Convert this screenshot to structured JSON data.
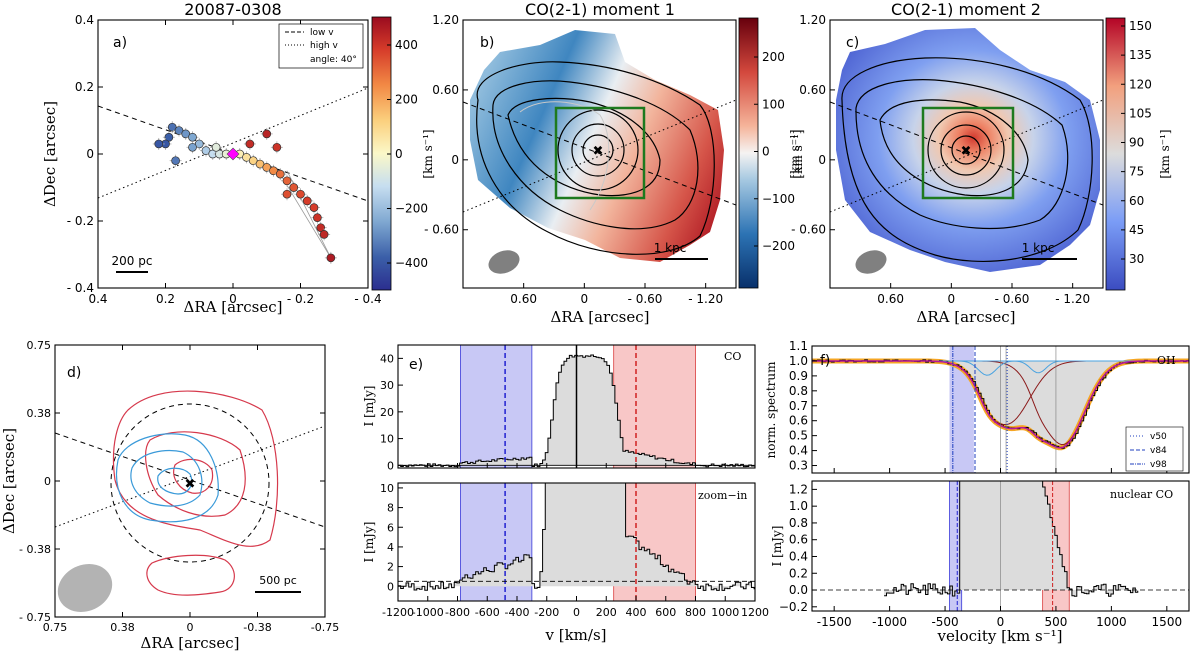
{
  "chart_data": [
    {
      "type": "scatter",
      "panel": "a)",
      "title": "20087-0308",
      "xlabel": "ΔRA [arcsec]",
      "ylabel": "ΔDec [arcsec]",
      "xlim": [
        0.4,
        -0.4
      ],
      "ylim": [
        -0.4,
        0.4
      ],
      "xticks": [
        "0.4",
        "0.2",
        "0",
        "- 0.2",
        "- 0.4"
      ],
      "yticks": [
        "0.4",
        "0.2",
        "0",
        "- 0.2",
        "- 0.4"
      ],
      "colorbar": {
        "ticks": [
          "400",
          "200",
          "0",
          "−200",
          "−400"
        ],
        "range": [
          -480,
          480
        ]
      },
      "legend": [
        "low v",
        "high v",
        "angle: 40°"
      ],
      "scalebar": "200 pc",
      "points": [
        [
          0.18,
          0.08,
          -330
        ],
        [
          0.16,
          0.07,
          -300
        ],
        [
          0.14,
          0.06,
          -270
        ],
        [
          0.12,
          0.05,
          -240
        ],
        [
          0.1,
          0.03,
          -200
        ],
        [
          0.08,
          0.01,
          -160
        ],
        [
          0.06,
          0.0,
          -120
        ],
        [
          0.04,
          0.0,
          -80
        ],
        [
          0.02,
          0.0,
          -40
        ],
        [
          0.19,
          0.05,
          -360
        ],
        [
          0.2,
          0.03,
          -380
        ],
        [
          0.12,
          0.02,
          -250
        ],
        [
          0.17,
          -0.02,
          -320
        ],
        [
          0.22,
          0.03,
          -380
        ],
        [
          0.05,
          0.02,
          -60
        ],
        [
          -0.02,
          0.0,
          30
        ],
        [
          -0.04,
          -0.01,
          70
        ],
        [
          -0.06,
          -0.02,
          110
        ],
        [
          -0.08,
          -0.03,
          150
        ],
        [
          -0.1,
          -0.04,
          200
        ],
        [
          -0.12,
          -0.05,
          240
        ],
        [
          -0.14,
          -0.06,
          280
        ],
        [
          -0.16,
          -0.08,
          300
        ],
        [
          -0.18,
          -0.1,
          320
        ],
        [
          -0.2,
          -0.12,
          340
        ],
        [
          -0.22,
          -0.14,
          360
        ],
        [
          -0.24,
          -0.16,
          360
        ],
        [
          -0.25,
          -0.19,
          380
        ],
        [
          -0.26,
          -0.22,
          400
        ],
        [
          -0.27,
          -0.24,
          410
        ],
        [
          -0.05,
          0.03,
          400
        ],
        [
          -0.1,
          0.06,
          420
        ],
        [
          -0.13,
          0.02,
          380
        ],
        [
          -0.29,
          -0.31,
          440
        ],
        [
          -0.16,
          -0.12,
          330
        ]
      ]
    },
    {
      "type": "heatmap",
      "panel": "b)",
      "title": "CO(2-1) moment 1",
      "xlabel": "ΔRA [arcsec]",
      "ylabel": "[km s⁻¹]",
      "xticks": [
        "0.60",
        "0",
        "- 0.60",
        "- 1.20"
      ],
      "yticks": [
        "1.20",
        "0.60",
        "0",
        "- 0.60"
      ],
      "colorbar": {
        "ticks": [
          "200",
          "100",
          "0",
          "−100",
          "−200"
        ],
        "unit": "[km s⁻¹]",
        "range": [
          -280,
          280
        ]
      },
      "scalebar": "1 kpc"
    },
    {
      "type": "heatmap",
      "panel": "c)",
      "title": "CO(2-1) moment 2",
      "xlabel": "ΔRA [arcsec]",
      "ylabel": "[km s⁻¹]",
      "xticks": [
        "0.60",
        "0",
        "- 0.60",
        "- 1.20"
      ],
      "yticks": [
        "1.20",
        "0.60",
        "0",
        "- 0.60"
      ],
      "colorbar": {
        "ticks": [
          "150",
          "135",
          "120",
          "105",
          "90",
          "75",
          "60",
          "45",
          "30"
        ],
        "unit": "[km s⁻¹]",
        "range": [
          20,
          155
        ]
      },
      "scalebar": "1 kpc"
    },
    {
      "type": "contour",
      "panel": "d)",
      "xlabel": "ΔRA [arcsec]",
      "ylabel": "ΔDec [arcsec]",
      "xticks": [
        "0.75",
        "0.38",
        "0",
        "-0.38",
        "-0.75"
      ],
      "yticks": [
        "0.75",
        "0.38",
        "0",
        "- 0.38",
        "- 0.75"
      ],
      "scalebar": "500 pc"
    },
    {
      "type": "line",
      "panel": "e)",
      "label": "CO",
      "xlabel": "v [km/s]",
      "ylabel": "I [mJy]",
      "xlim": [
        -1200,
        1200
      ],
      "ylim": [
        -1,
        45
      ],
      "xticks": [
        "-1200",
        "-1000",
        "-800",
        "-600",
        "-400",
        "-200",
        "0",
        "200",
        "400",
        "600",
        "800",
        "1000",
        "1200"
      ],
      "yticks": [
        "0",
        "10",
        "20",
        "30",
        "40"
      ],
      "blue_band": [
        -780,
        -300
      ],
      "red_band": [
        250,
        800
      ],
      "blue_line": -480,
      "red_line": 400
    },
    {
      "type": "line",
      "panel": "e) lower",
      "label": "zoom−in",
      "xlabel": "v [km/s]",
      "ylabel": "I [mJy]",
      "ylim": [
        -1.5,
        10.5
      ],
      "yticks": [
        "0",
        "2",
        "4",
        "6",
        "8",
        "10"
      ],
      "hline": 0.5
    },
    {
      "type": "line",
      "panel": "f)",
      "label": "OH",
      "xlabel": "velocity [km s⁻¹]",
      "ylabel": "norm. spectrum",
      "xlim": [
        -1700,
        1700
      ],
      "ylim": [
        0.25,
        1.1
      ],
      "xticks": [
        "-1500",
        "-1000",
        "-500",
        "0",
        "500",
        "1000",
        "1500"
      ],
      "yticks": [
        "0.3",
        "0.4",
        "0.5",
        "0.6",
        "0.7",
        "0.8",
        "0.9",
        "1.0",
        "1.1"
      ],
      "legend": [
        "v50",
        "v84",
        "v98"
      ],
      "blue_band": [
        -460,
        -240
      ],
      "vlines": [
        0,
        50,
        500
      ]
    },
    {
      "type": "line",
      "panel": "f) lower",
      "label": "nuclear CO",
      "xlabel": "velocity [km s⁻¹]",
      "ylabel": "I [mJy]",
      "ylim": [
        -0.25,
        1.3
      ],
      "yticks": [
        "−0.2",
        "0.0",
        "0.2",
        "0.4",
        "0.6",
        "0.8",
        "1.0",
        "1.2"
      ],
      "blue_band": [
        -460,
        -350
      ],
      "red_band": [
        380,
        620
      ]
    }
  ]
}
